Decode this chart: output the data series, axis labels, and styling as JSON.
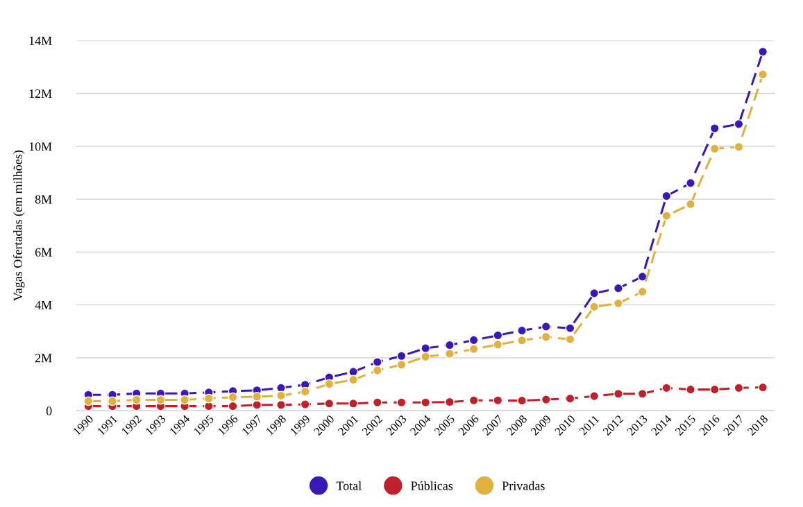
{
  "chart_data": {
    "type": "line",
    "ylabel": "Vagas Ofertadas (em milhões)",
    "categories": [
      "1990",
      "1991",
      "1992",
      "1993",
      "1994",
      "1995",
      "1996",
      "1997",
      "1998",
      "1999",
      "2000",
      "2001",
      "2002",
      "2003",
      "2004",
      "2005",
      "2006",
      "2007",
      "2008",
      "2009",
      "2010",
      "2011",
      "2012",
      "2013",
      "2014",
      "2015",
      "2016",
      "2017",
      "2018"
    ],
    "series": [
      {
        "name": "Total",
        "color": "#3a18b8",
        "values": [
          0.6,
          0.6,
          0.65,
          0.65,
          0.65,
          0.69,
          0.74,
          0.77,
          0.86,
          0.98,
          1.26,
          1.47,
          1.84,
          2.07,
          2.36,
          2.48,
          2.67,
          2.85,
          3.03,
          3.18,
          3.12,
          4.44,
          4.63,
          5.07,
          8.12,
          8.61,
          10.68,
          10.84,
          13.58
        ]
      },
      {
        "name": "Públicas",
        "color": "#c0202a",
        "values": [
          0.17,
          0.17,
          0.17,
          0.17,
          0.17,
          0.17,
          0.17,
          0.22,
          0.22,
          0.24,
          0.27,
          0.27,
          0.31,
          0.31,
          0.31,
          0.33,
          0.39,
          0.39,
          0.38,
          0.42,
          0.46,
          0.55,
          0.64,
          0.64,
          0.86,
          0.8,
          0.8,
          0.86,
          0.88
        ]
      },
      {
        "name": "Privadas",
        "color": "#e0b040",
        "values": [
          0.36,
          0.36,
          0.41,
          0.41,
          0.41,
          0.46,
          0.51,
          0.53,
          0.57,
          0.72,
          1.01,
          1.17,
          1.52,
          1.74,
          2.04,
          2.15,
          2.33,
          2.5,
          2.66,
          2.79,
          2.7,
          3.93,
          4.06,
          4.5,
          7.37,
          7.81,
          9.91,
          9.98,
          12.72
        ]
      }
    ],
    "ylim": [
      0,
      14
    ],
    "yticks": [
      {
        "value": 0,
        "label": "0"
      },
      {
        "value": 2,
        "label": "2M"
      },
      {
        "value": 4,
        "label": "4M"
      },
      {
        "value": 6,
        "label": "6M"
      },
      {
        "value": 8,
        "label": "8M"
      },
      {
        "value": 10,
        "label": "10M"
      },
      {
        "value": 12,
        "label": "12M"
      },
      {
        "value": 14,
        "label": "14M"
      }
    ],
    "grid": "y",
    "legend": "bottom",
    "marker": "circle",
    "line_style": "dashed"
  }
}
